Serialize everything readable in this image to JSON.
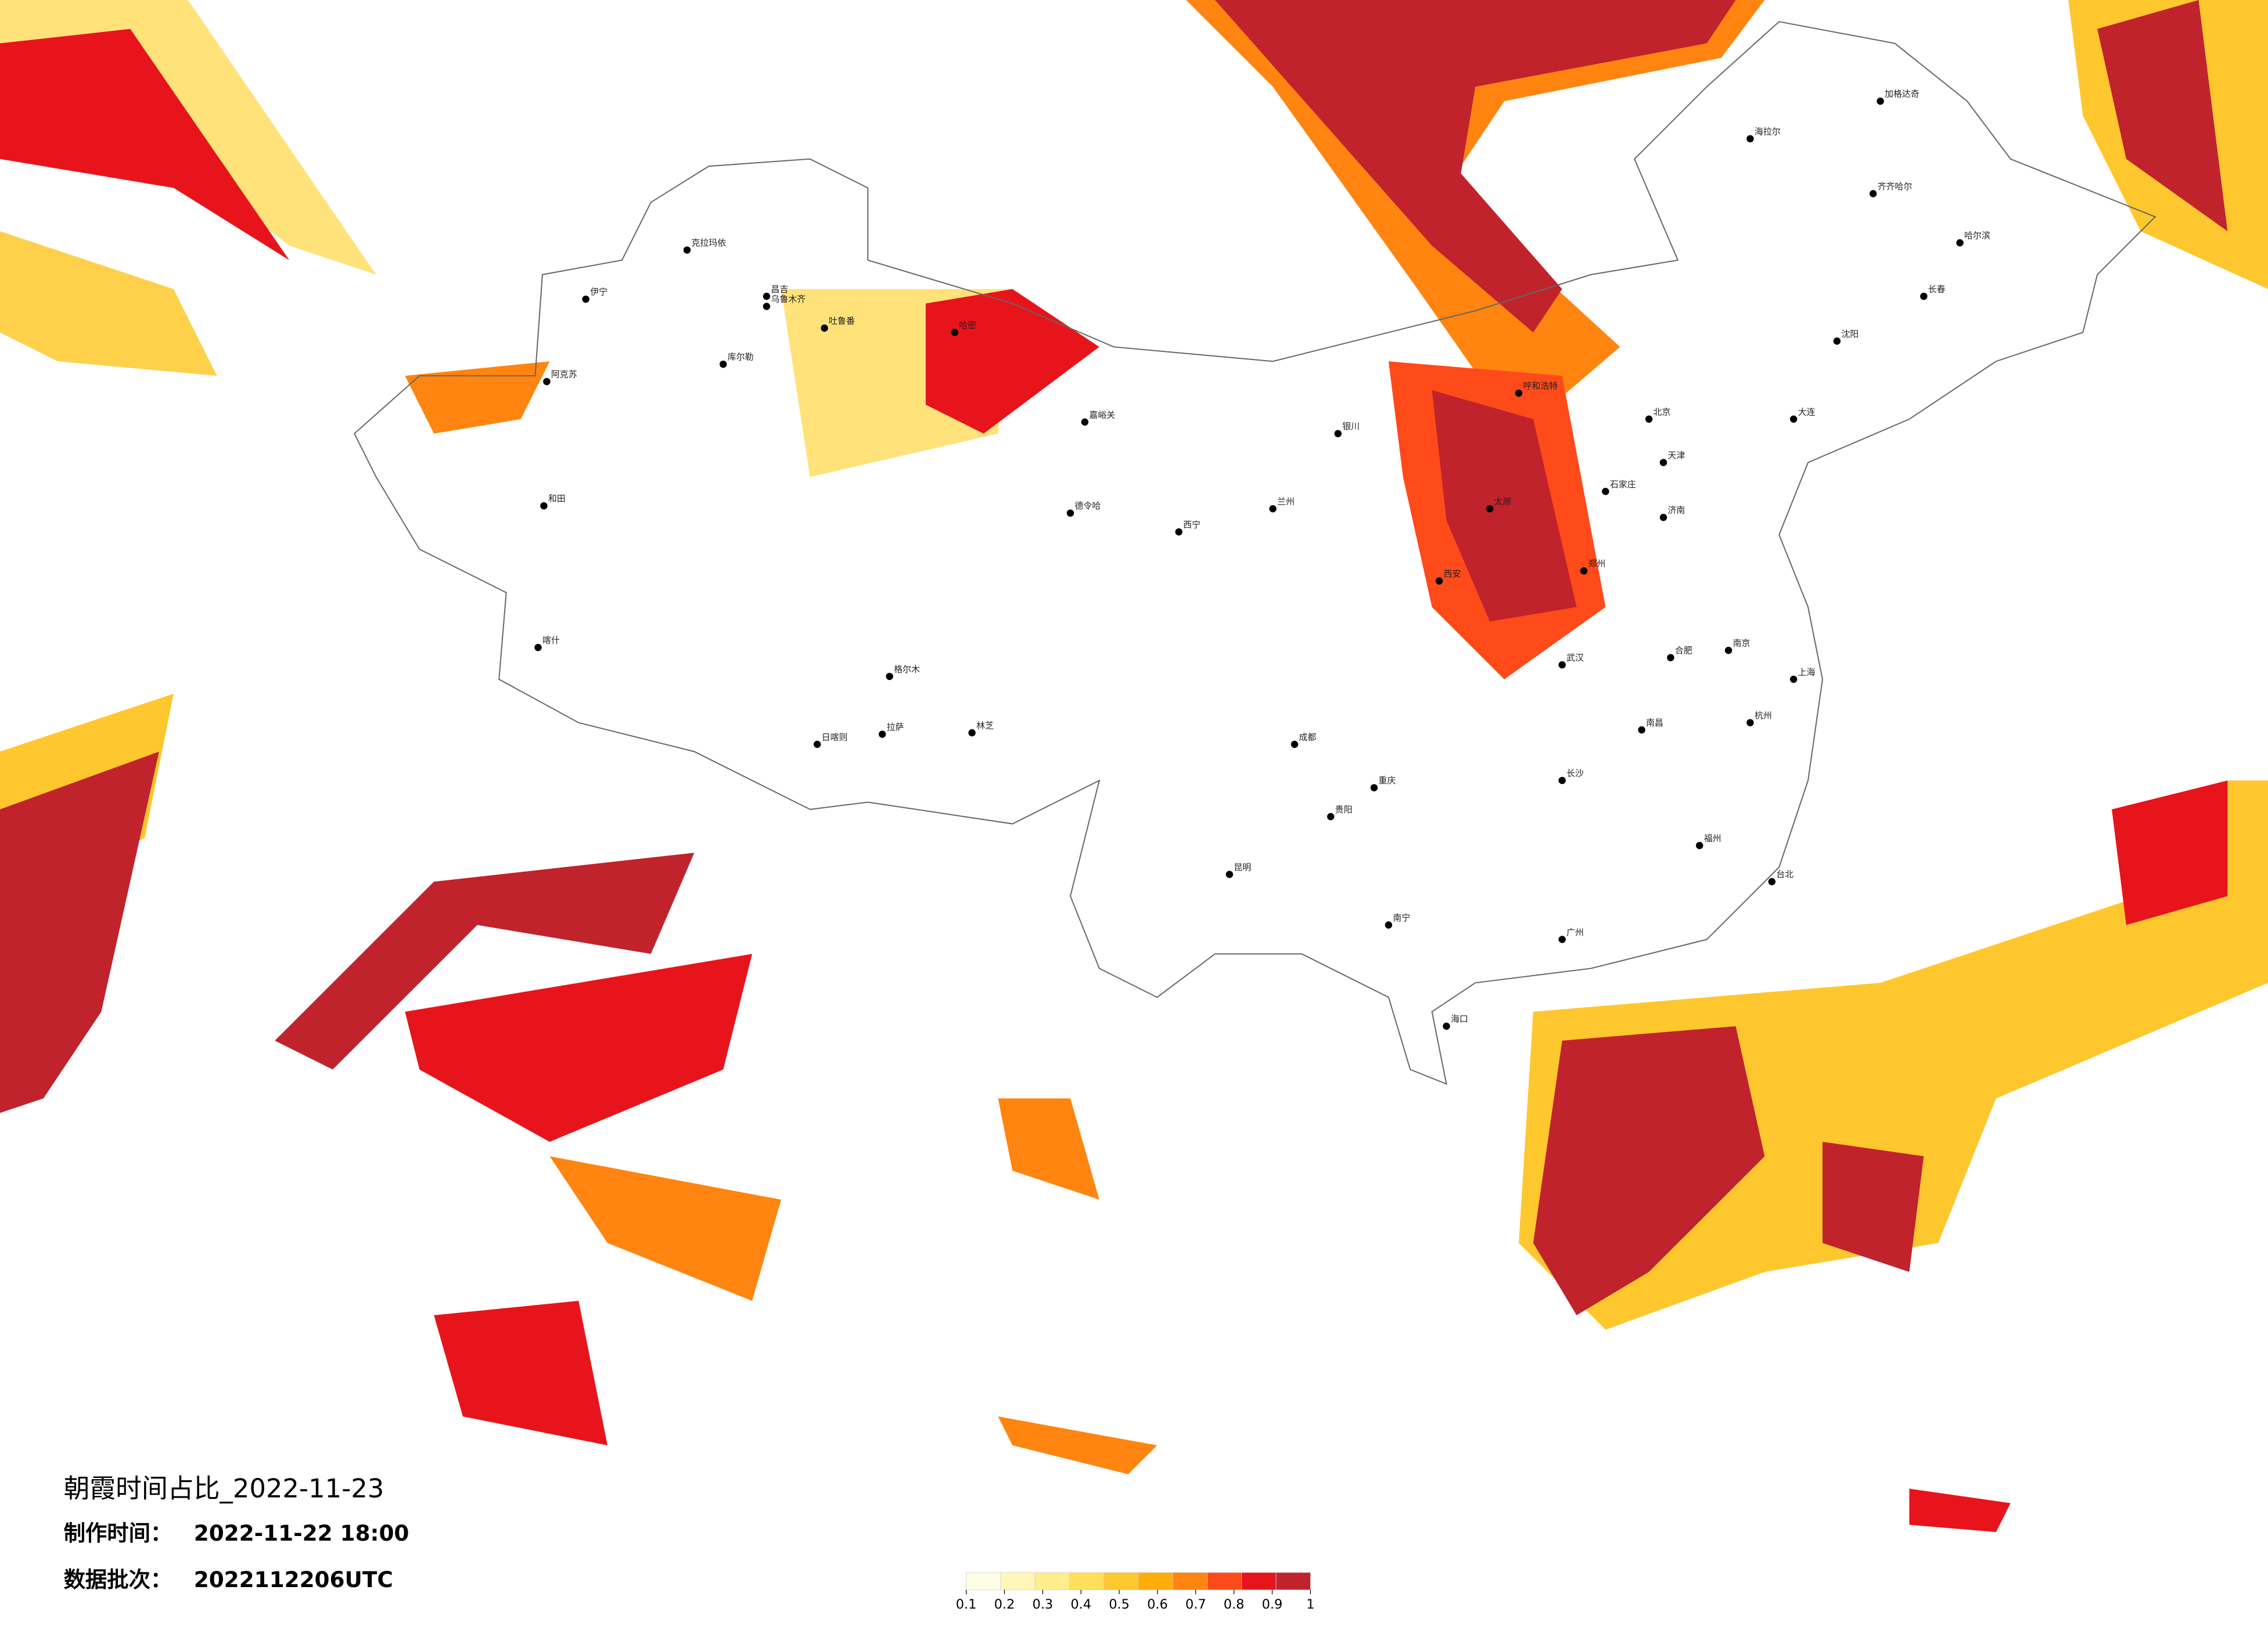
{
  "title": "朝霞时间占比_2022-11-23",
  "info": [
    {
      "label": "制作时间：",
      "value": "2022-11-22 18:00"
    },
    {
      "label": "数据批次：",
      "value": "2022112206UTC"
    }
  ],
  "legend": {
    "ticks": [
      0.1,
      0.2,
      0.3,
      0.4,
      0.5,
      0.6,
      0.7,
      0.8,
      0.9,
      1
    ],
    "colors": [
      "#fffde6",
      "#fff6b8",
      "#ffee8c",
      "#ffdf5c",
      "#ffc72e",
      "#ffad0a",
      "#ff8410",
      "#ff4a1a",
      "#e8141c",
      "#c0232c"
    ]
  },
  "cities": [
    "克拉玛依",
    "伊宁",
    "昌吉",
    "乌鲁木齐",
    "吐鲁番",
    "库尔勒",
    "阿克苏",
    "和田",
    "喀什",
    "哈密",
    "嘉峪关",
    "德令哈",
    "格尔木",
    "拉萨",
    "日喀则",
    "林芝",
    "海拉尔",
    "加格达奇",
    "齐齐哈尔",
    "哈尔滨",
    "长春",
    "沈阳",
    "大连",
    "北京",
    "天津",
    "石家庄",
    "太原",
    "呼和浩特",
    "银川",
    "兰州",
    "西宁",
    "济南",
    "郑州",
    "西安",
    "武汉",
    "南京",
    "上海",
    "杭州",
    "合肥",
    "南昌",
    "长沙",
    "成都",
    "重庆",
    "贵阳",
    "昆明",
    "南宁",
    "广州",
    "福州",
    "台北",
    "海口"
  ]
}
